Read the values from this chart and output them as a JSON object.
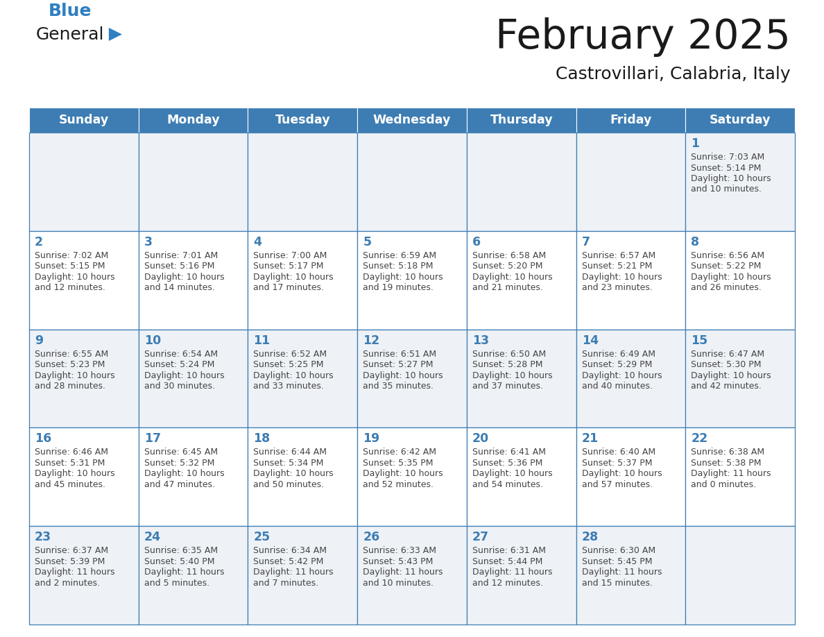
{
  "title": "February 2025",
  "subtitle": "Castrovillari, Calabria, Italy",
  "days_of_week": [
    "Sunday",
    "Monday",
    "Tuesday",
    "Wednesday",
    "Thursday",
    "Friday",
    "Saturday"
  ],
  "header_bg": "#3d7db3",
  "header_text": "#ffffff",
  "cell_bg_odd": "#eef2f7",
  "cell_bg_even": "#ffffff",
  "border_color": "#3d7db3",
  "title_color": "#1a1a1a",
  "subtitle_color": "#1a1a1a",
  "day_number_color": "#3d7db3",
  "cell_text_color": "#444444",
  "logo_general_color": "#1a1a1a",
  "logo_blue_color": "#2f7fc1",
  "calendar_data": [
    [
      null,
      null,
      null,
      null,
      null,
      null,
      {
        "day": 1,
        "sunrise": "7:03 AM",
        "sunset": "5:14 PM",
        "daylight_line1": "Daylight: 10 hours",
        "daylight_line2": "and 10 minutes."
      }
    ],
    [
      {
        "day": 2,
        "sunrise": "7:02 AM",
        "sunset": "5:15 PM",
        "daylight_line1": "Daylight: 10 hours",
        "daylight_line2": "and 12 minutes."
      },
      {
        "day": 3,
        "sunrise": "7:01 AM",
        "sunset": "5:16 PM",
        "daylight_line1": "Daylight: 10 hours",
        "daylight_line2": "and 14 minutes."
      },
      {
        "day": 4,
        "sunrise": "7:00 AM",
        "sunset": "5:17 PM",
        "daylight_line1": "Daylight: 10 hours",
        "daylight_line2": "and 17 minutes."
      },
      {
        "day": 5,
        "sunrise": "6:59 AM",
        "sunset": "5:18 PM",
        "daylight_line1": "Daylight: 10 hours",
        "daylight_line2": "and 19 minutes."
      },
      {
        "day": 6,
        "sunrise": "6:58 AM",
        "sunset": "5:20 PM",
        "daylight_line1": "Daylight: 10 hours",
        "daylight_line2": "and 21 minutes."
      },
      {
        "day": 7,
        "sunrise": "6:57 AM",
        "sunset": "5:21 PM",
        "daylight_line1": "Daylight: 10 hours",
        "daylight_line2": "and 23 minutes."
      },
      {
        "day": 8,
        "sunrise": "6:56 AM",
        "sunset": "5:22 PM",
        "daylight_line1": "Daylight: 10 hours",
        "daylight_line2": "and 26 minutes."
      }
    ],
    [
      {
        "day": 9,
        "sunrise": "6:55 AM",
        "sunset": "5:23 PM",
        "daylight_line1": "Daylight: 10 hours",
        "daylight_line2": "and 28 minutes."
      },
      {
        "day": 10,
        "sunrise": "6:54 AM",
        "sunset": "5:24 PM",
        "daylight_line1": "Daylight: 10 hours",
        "daylight_line2": "and 30 minutes."
      },
      {
        "day": 11,
        "sunrise": "6:52 AM",
        "sunset": "5:25 PM",
        "daylight_line1": "Daylight: 10 hours",
        "daylight_line2": "and 33 minutes."
      },
      {
        "day": 12,
        "sunrise": "6:51 AM",
        "sunset": "5:27 PM",
        "daylight_line1": "Daylight: 10 hours",
        "daylight_line2": "and 35 minutes."
      },
      {
        "day": 13,
        "sunrise": "6:50 AM",
        "sunset": "5:28 PM",
        "daylight_line1": "Daylight: 10 hours",
        "daylight_line2": "and 37 minutes."
      },
      {
        "day": 14,
        "sunrise": "6:49 AM",
        "sunset": "5:29 PM",
        "daylight_line1": "Daylight: 10 hours",
        "daylight_line2": "and 40 minutes."
      },
      {
        "day": 15,
        "sunrise": "6:47 AM",
        "sunset": "5:30 PM",
        "daylight_line1": "Daylight: 10 hours",
        "daylight_line2": "and 42 minutes."
      }
    ],
    [
      {
        "day": 16,
        "sunrise": "6:46 AM",
        "sunset": "5:31 PM",
        "daylight_line1": "Daylight: 10 hours",
        "daylight_line2": "and 45 minutes."
      },
      {
        "day": 17,
        "sunrise": "6:45 AM",
        "sunset": "5:32 PM",
        "daylight_line1": "Daylight: 10 hours",
        "daylight_line2": "and 47 minutes."
      },
      {
        "day": 18,
        "sunrise": "6:44 AM",
        "sunset": "5:34 PM",
        "daylight_line1": "Daylight: 10 hours",
        "daylight_line2": "and 50 minutes."
      },
      {
        "day": 19,
        "sunrise": "6:42 AM",
        "sunset": "5:35 PM",
        "daylight_line1": "Daylight: 10 hours",
        "daylight_line2": "and 52 minutes."
      },
      {
        "day": 20,
        "sunrise": "6:41 AM",
        "sunset": "5:36 PM",
        "daylight_line1": "Daylight: 10 hours",
        "daylight_line2": "and 54 minutes."
      },
      {
        "day": 21,
        "sunrise": "6:40 AM",
        "sunset": "5:37 PM",
        "daylight_line1": "Daylight: 10 hours",
        "daylight_line2": "and 57 minutes."
      },
      {
        "day": 22,
        "sunrise": "6:38 AM",
        "sunset": "5:38 PM",
        "daylight_line1": "Daylight: 11 hours",
        "daylight_line2": "and 0 minutes."
      }
    ],
    [
      {
        "day": 23,
        "sunrise": "6:37 AM",
        "sunset": "5:39 PM",
        "daylight_line1": "Daylight: 11 hours",
        "daylight_line2": "and 2 minutes."
      },
      {
        "day": 24,
        "sunrise": "6:35 AM",
        "sunset": "5:40 PM",
        "daylight_line1": "Daylight: 11 hours",
        "daylight_line2": "and 5 minutes."
      },
      {
        "day": 25,
        "sunrise": "6:34 AM",
        "sunset": "5:42 PM",
        "daylight_line1": "Daylight: 11 hours",
        "daylight_line2": "and 7 minutes."
      },
      {
        "day": 26,
        "sunrise": "6:33 AM",
        "sunset": "5:43 PM",
        "daylight_line1": "Daylight: 11 hours",
        "daylight_line2": "and 10 minutes."
      },
      {
        "day": 27,
        "sunrise": "6:31 AM",
        "sunset": "5:44 PM",
        "daylight_line1": "Daylight: 11 hours",
        "daylight_line2": "and 12 minutes."
      },
      {
        "day": 28,
        "sunrise": "6:30 AM",
        "sunset": "5:45 PM",
        "daylight_line1": "Daylight: 11 hours",
        "daylight_line2": "and 15 minutes."
      },
      null
    ]
  ],
  "fig_width": 11.88,
  "fig_height": 9.18,
  "dpi": 100
}
